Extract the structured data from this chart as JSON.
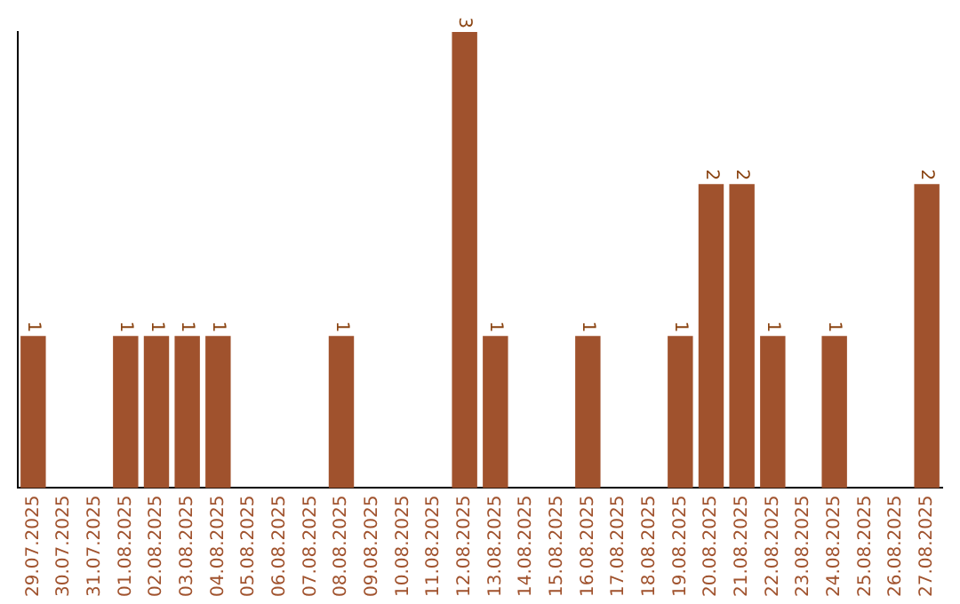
{
  "chart_data": {
    "type": "bar",
    "categories": [
      "29.07.2025",
      "30.07.2025",
      "31.07.2025",
      "01.08.2025",
      "02.08.2025",
      "03.08.2025",
      "04.08.2025",
      "05.08.2025",
      "06.08.2025",
      "07.08.2025",
      "08.08.2025",
      "09.08.2025",
      "10.08.2025",
      "11.08.2025",
      "12.08.2025",
      "13.08.2025",
      "14.08.2025",
      "15.08.2025",
      "16.08.2025",
      "17.08.2025",
      "18.08.2025",
      "19.08.2025",
      "20.08.2025",
      "21.08.2025",
      "22.08.2025",
      "23.08.2025",
      "24.08.2025",
      "25.08.2025",
      "26.08.2025",
      "27.08.2025"
    ],
    "values": [
      1,
      0,
      0,
      1,
      1,
      1,
      1,
      0,
      0,
      0,
      1,
      0,
      0,
      0,
      3,
      1,
      0,
      0,
      1,
      0,
      0,
      1,
      2,
      2,
      1,
      0,
      1,
      0,
      0,
      2
    ],
    "value_labels": [
      "1",
      null,
      null,
      "1",
      "1",
      "1",
      "1",
      null,
      null,
      null,
      "1",
      null,
      null,
      null,
      "3",
      "1",
      null,
      null,
      "1",
      null,
      null,
      "1",
      "2",
      "2",
      "1",
      null,
      "1",
      null,
      null,
      "2"
    ],
    "color": "#a0522d",
    "grid": false,
    "legend": false
  }
}
